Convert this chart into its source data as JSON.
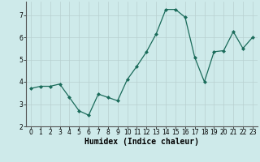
{
  "x": [
    0,
    1,
    2,
    3,
    4,
    5,
    6,
    7,
    8,
    9,
    10,
    11,
    12,
    13,
    14,
    15,
    16,
    17,
    18,
    19,
    20,
    21,
    22,
    23
  ],
  "y": [
    3.7,
    3.8,
    3.8,
    3.9,
    3.3,
    2.7,
    2.5,
    3.45,
    3.3,
    3.15,
    4.1,
    4.7,
    5.35,
    6.15,
    7.25,
    7.25,
    6.9,
    5.1,
    4.0,
    5.35,
    5.4,
    6.25,
    5.5,
    6.0
  ],
  "line_color": "#1a6b5a",
  "marker": "D",
  "markersize": 2.0,
  "linewidth": 0.9,
  "xlabel": "Humidex (Indice chaleur)",
  "xlim": [
    -0.5,
    23.5
  ],
  "ylim": [
    2.0,
    7.6
  ],
  "yticks": [
    2,
    3,
    4,
    5,
    6,
    7
  ],
  "xticks": [
    0,
    1,
    2,
    3,
    4,
    5,
    6,
    7,
    8,
    9,
    10,
    11,
    12,
    13,
    14,
    15,
    16,
    17,
    18,
    19,
    20,
    21,
    22,
    23
  ],
  "bg_color": "#ceeaea",
  "grid_color": "#b8d0d0",
  "tick_labelsize": 5.5,
  "xlabel_fontsize": 7.0
}
